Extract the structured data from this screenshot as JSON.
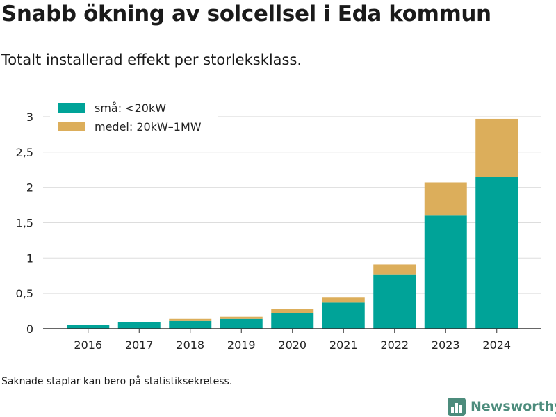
{
  "title": "Snabb ökning av solcellsel i Eda kommun",
  "subtitle": "Totalt installerad effekt per storleksklass.",
  "footnote": "Saknade staplar kan bero på statistiksekretess.",
  "brand": {
    "name": "Newsworthy",
    "color": "#4c8c7c",
    "icon": "bar-chart-logo-icon"
  },
  "chart_data": {
    "type": "bar",
    "stacked": true,
    "categories": [
      "2016",
      "2017",
      "2018",
      "2019",
      "2020",
      "2021",
      "2022",
      "2023",
      "2024"
    ],
    "series": [
      {
        "name": "små: <20kW",
        "color": "#00a398",
        "values": [
          0.05,
          0.09,
          0.11,
          0.14,
          0.22,
          0.37,
          0.77,
          1.6,
          2.15
        ]
      },
      {
        "name": "medel: 20kW–1MW",
        "color": "#dcae5b",
        "values": [
          0,
          0,
          0.03,
          0.03,
          0.06,
          0.07,
          0.14,
          0.47,
          0.82
        ]
      }
    ],
    "yticks": [
      0,
      0.5,
      1,
      1.5,
      2,
      2.5,
      3
    ],
    "ytick_labels": [
      "0",
      "0,5",
      "1",
      "1,5",
      "2",
      "2,5",
      "3"
    ],
    "ylim": [
      0,
      3.1
    ],
    "grid": true,
    "legend_position": "top-left"
  }
}
